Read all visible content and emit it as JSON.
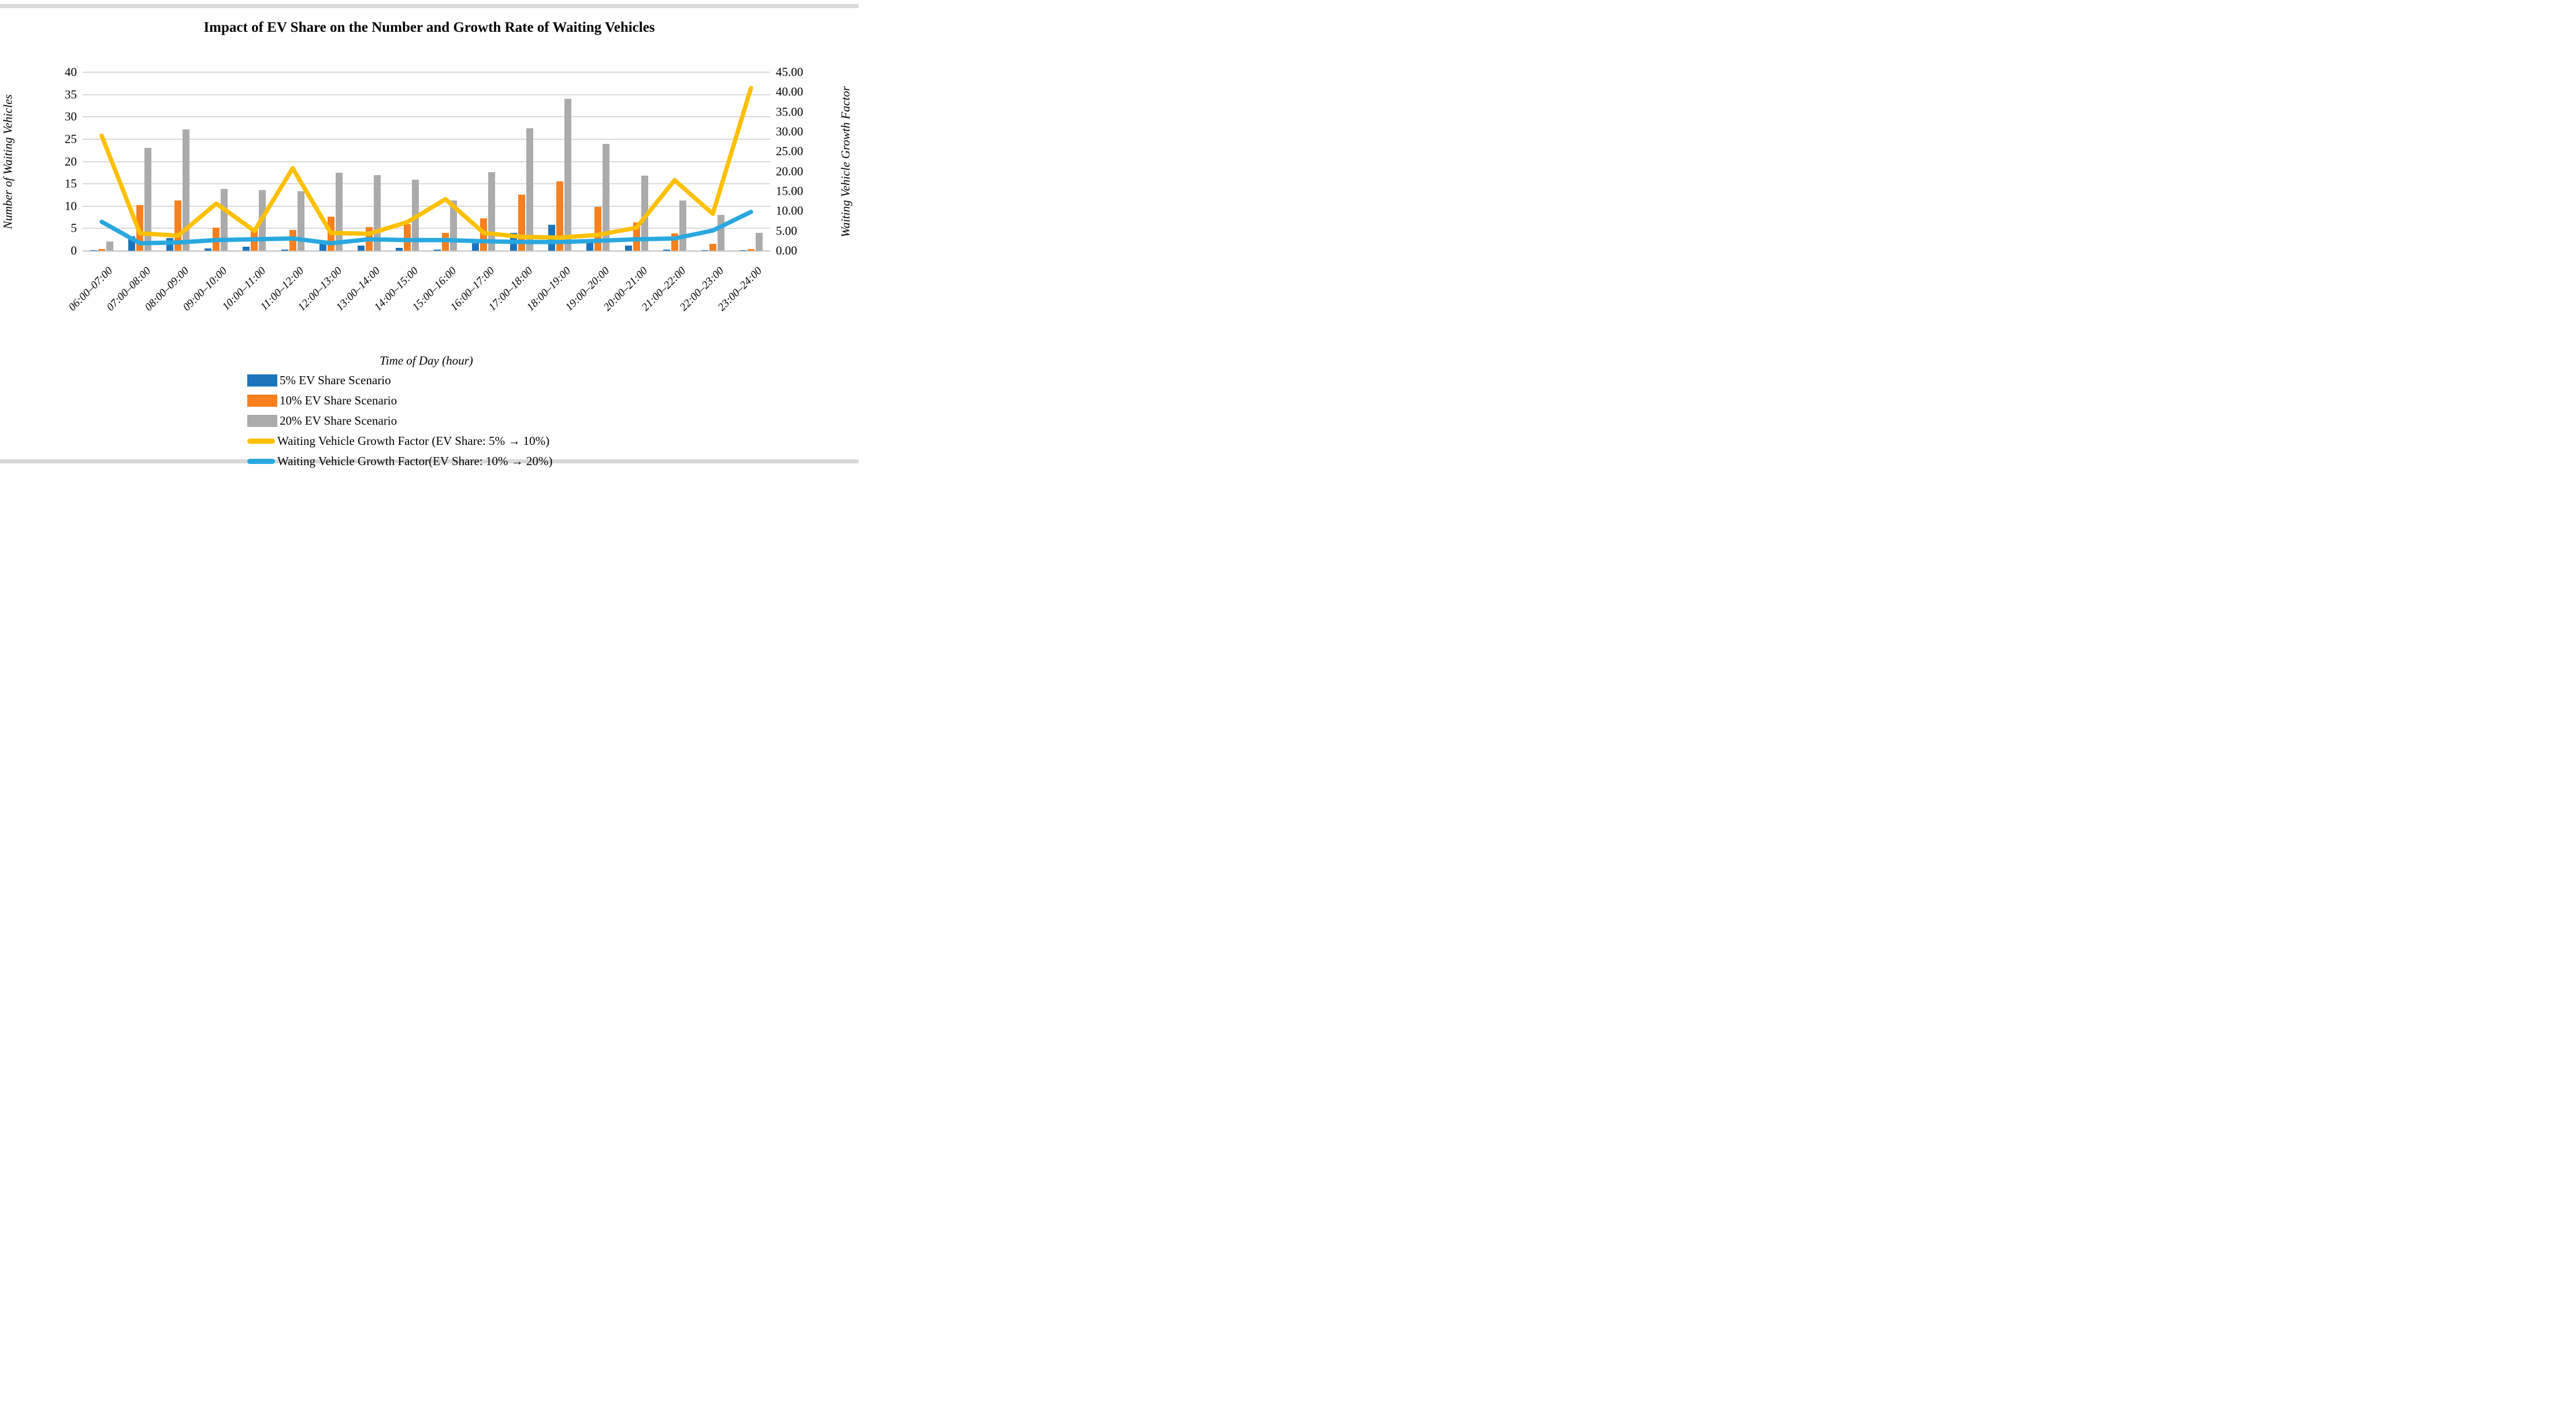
{
  "figure": {
    "title": "Impact of EV Share on the Number and Growth Rate of Waiting Vehicles"
  },
  "chart_data": {
    "type": "bar",
    "subtype": "combo-bar-line-dual-axis",
    "grid": true,
    "legend_position": "bottom-left",
    "categories": [
      "06:00–07:00",
      "07:00–08:00",
      "08:00–09:00",
      "09:00–10:00",
      "10:00–11:00",
      "11:00–12:00",
      "12:00–13:00",
      "13:00–14:00",
      "14:00–15:00",
      "15:00–16:00",
      "16:00–17:00",
      "17:00–18:00",
      "18:00–19:00",
      "19:00–20:00",
      "20:00–21:00",
      "21:00–22:00",
      "22:00–23:00",
      "23:00–24:00"
    ],
    "series": [
      {
        "name": "5% EV Share Scenario",
        "type": "bar",
        "axis": "left",
        "color": "#1C75BC",
        "values": [
          0.1,
          3.2,
          2.8,
          0.5,
          0.9,
          0.2,
          1.7,
          1.2,
          0.7,
          0.3,
          1.7,
          4.0,
          5.8,
          1.9,
          1.2,
          0.2,
          0.1,
          0.1
        ]
      },
      {
        "name": "10% EV Share Scenario",
        "type": "bar",
        "axis": "left",
        "color": "#F8801E",
        "values": [
          0.4,
          10.2,
          11.3,
          5.2,
          5.0,
          4.7,
          7.6,
          5.3,
          5.9,
          4.0,
          7.2,
          12.5,
          15.6,
          9.8,
          6.3,
          3.9,
          1.5,
          0.4
        ]
      },
      {
        "name": "20% EV Share Scenario",
        "type": "bar",
        "axis": "left",
        "color": "#ABABAB",
        "values": [
          2.1,
          23.0,
          27.2,
          13.9,
          13.6,
          13.4,
          17.5,
          17.0,
          15.9,
          11.3,
          17.6,
          27.5,
          34.0,
          23.9,
          16.8,
          11.3,
          8.0,
          4.0
        ]
      },
      {
        "name": "Waiting Vehicle Growth Factor (EV Share: 5% → 10%)",
        "type": "line",
        "axis": "right",
        "color": "#FFC000",
        "values": [
          29.0,
          4.4,
          3.8,
          11.9,
          5.0,
          20.8,
          4.5,
          4.3,
          7.2,
          13.0,
          4.5,
          3.5,
          3.3,
          4.0,
          5.8,
          17.8,
          9.3,
          41.0
        ]
      },
      {
        "name": "Waiting Vehicle Growth Factor(EV Share: 10% → 20%)",
        "type": "line",
        "axis": "right",
        "color": "#29A8E0",
        "values": [
          7.3,
          1.9,
          2.1,
          2.7,
          2.9,
          3.1,
          1.9,
          2.9,
          2.7,
          2.7,
          2.4,
          2.2,
          2.2,
          2.5,
          2.9,
          3.1,
          5.1,
          9.8
        ]
      }
    ],
    "left_axis": {
      "title": "Number of Waiting Vehicles",
      "min": 0,
      "max": 40,
      "step": 5,
      "ticks": [
        "0",
        "5",
        "10",
        "15",
        "20",
        "25",
        "30",
        "35",
        "40"
      ]
    },
    "right_axis": {
      "title": "Waiting Vehicle Growth Factor",
      "min": 0,
      "max": 45,
      "step": 5,
      "ticks": [
        "0.00",
        "5.00",
        "10.00",
        "15.00",
        "20.00",
        "25.00",
        "30.00",
        "35.00",
        "40.00",
        "45.00"
      ]
    },
    "x_axis": {
      "title": "Time of Day (hour)"
    }
  }
}
